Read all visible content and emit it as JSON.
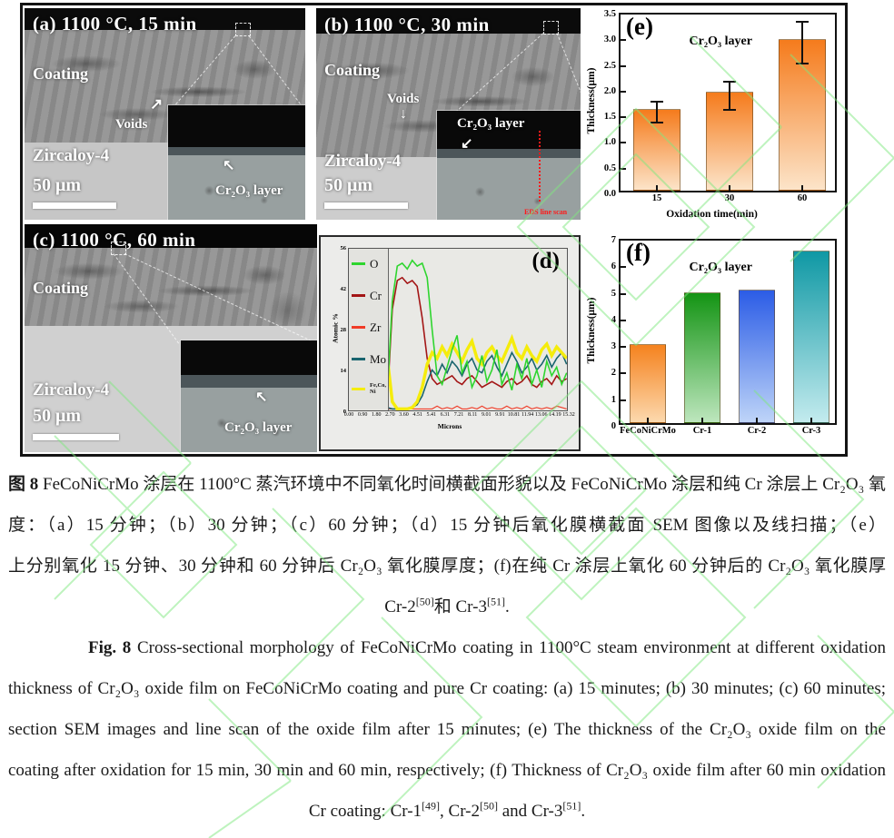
{
  "watermark": {
    "color": "#7fe87f"
  },
  "sem": {
    "a": {
      "title": "(a) 1100 °C, 15 min",
      "coating_label": "Coating",
      "voids_label": "Voids",
      "substrate_label": "Zircaloy-4",
      "scalebar_label": "50 μm",
      "inset_label": "Cr₂O₃ layer"
    },
    "b": {
      "title": "(b) 1100 °C, 30 min",
      "coating_label": "Coating",
      "voids_label": "Voids",
      "substrate_label": "Zircaloy-4",
      "scalebar_label": "50 μm",
      "inset_label": "Cr₂O₃ layer",
      "eds_label": "EDS line scan"
    },
    "c": {
      "title": "(c) 1100 °C, 60 min",
      "coating_label": "Coating",
      "substrate_label": "Zircaloy-4",
      "scalebar_label": "50 μm",
      "inset_label": "Cr₂O₃ layer"
    }
  },
  "chart_data": [
    {
      "type": "bar",
      "panel": "(e)",
      "title": "Cr₂O₃ layer",
      "xlabel": "Oxidation time(min)",
      "ylabel": "Thickness(μm)",
      "ylim": [
        0,
        3.5
      ],
      "yticks": [
        "0.0",
        "0.5",
        "1.0",
        "1.5",
        "2.0",
        "2.5",
        "3.0",
        "3.5"
      ],
      "categories": [
        "15",
        "30",
        "60"
      ],
      "values": [
        1.6,
        1.92,
        2.95
      ],
      "errors": [
        0.2,
        0.28,
        0.4
      ],
      "bar_colors": [
        [
          "#f57b1c",
          "#fce4c9"
        ],
        [
          "#f57b1c",
          "#fce4c9"
        ],
        [
          "#f57b1c",
          "#fce4c9"
        ]
      ],
      "grid": false,
      "legend": "none"
    },
    {
      "type": "line",
      "panel": "(d)",
      "xlabel": "Microns",
      "ylabel": "Atomic %",
      "ylim": [
        0,
        56
      ],
      "xlim": [
        0,
        15.32
      ],
      "yticks": [
        "0",
        "14",
        "28",
        "42",
        "56"
      ],
      "ytick_values": [
        0,
        14,
        28,
        42,
        56
      ],
      "xtick_labels": [
        "0.00",
        "0.90",
        "1.80",
        "2.70",
        "3.60",
        "4.51",
        "5.41",
        "6.31",
        "7.21",
        "8.11",
        "9.01",
        "9.91",
        "10.81",
        "11.94",
        "13.06",
        "14.19",
        "15.32"
      ],
      "legend_position": "left-column",
      "legend_boundary_x": 2.75,
      "x": [
        2.7,
        3.05,
        3.4,
        3.75,
        4.1,
        4.45,
        4.8,
        5.15,
        5.5,
        5.85,
        6.2,
        6.55,
        6.9,
        7.25,
        7.6,
        7.95,
        8.3,
        8.65,
        9.0,
        9.35,
        9.7,
        10.05,
        10.4,
        10.75,
        11.1,
        11.45,
        11.8,
        12.15,
        12.5,
        12.85,
        13.2,
        13.55,
        13.9,
        14.25,
        14.6,
        14.95,
        15.3
      ],
      "series": [
        {
          "name": "O",
          "legend": "O",
          "color": "#2ed52e",
          "y": [
            6,
            38,
            50,
            51,
            49,
            52,
            50,
            51,
            46,
            28,
            12,
            9,
            15,
            21,
            26,
            13,
            17,
            8,
            12,
            19,
            10,
            14,
            21,
            9,
            13,
            7,
            16,
            11,
            18,
            9,
            14,
            8,
            17,
            12,
            15,
            9,
            13
          ]
        },
        {
          "name": "Cr",
          "legend": "Cr",
          "color": "#a31515",
          "y": [
            4,
            35,
            45,
            46,
            44,
            45,
            43,
            32,
            18,
            11,
            9,
            10,
            11,
            12,
            10,
            9,
            11,
            12,
            10,
            8,
            9,
            10,
            9,
            8,
            10,
            11,
            9,
            10,
            12,
            9,
            8,
            10,
            11,
            9,
            12,
            10,
            11
          ]
        },
        {
          "name": "Zr",
          "legend": "Zr",
          "color": "#f03c28",
          "y": [
            0.5,
            0.5,
            0.5,
            0.5,
            0.5,
            0.5,
            0.5,
            0.5,
            0.5,
            0.5,
            1.5,
            0.5,
            1,
            0.5,
            1.5,
            0.5,
            0.5,
            1,
            0.5,
            1.5,
            0.5,
            1,
            0.5,
            0.5,
            1.5,
            0.5,
            1,
            0.5,
            1.5,
            0.5,
            1,
            0.5,
            1,
            0.5,
            1.5,
            1,
            0.5
          ]
        },
        {
          "name": "Mo",
          "legend": "Mo",
          "color": "#19646e",
          "y": [
            1,
            0.5,
            0.5,
            0.5,
            0.5,
            1,
            2,
            5,
            10,
            14,
            12,
            16,
            13,
            17,
            15,
            12,
            16,
            18,
            14,
            13,
            17,
            19,
            15,
            12,
            16,
            20,
            17,
            13,
            15,
            18,
            14,
            16,
            19,
            15,
            18,
            20,
            16
          ]
        },
        {
          "name": "Fe,Co,Ni",
          "legend": "Fe,Co,\nNi",
          "color": "#f5ec0c",
          "y": [
            18,
            3,
            0.5,
            0.5,
            0.5,
            1,
            3,
            8,
            16,
            20,
            18,
            22,
            19,
            23,
            20,
            17,
            21,
            24,
            18,
            16,
            20,
            22,
            19,
            17,
            21,
            25,
            20,
            18,
            22,
            19,
            17,
            21,
            23,
            19,
            22,
            20,
            18
          ]
        }
      ],
      "grid": false
    },
    {
      "type": "bar",
      "panel": "(f)",
      "title": "Cr₂O₃ layer",
      "xlabel": "",
      "ylabel": "Thickness(μm)",
      "ylim": [
        0,
        7
      ],
      "yticks": [
        "0",
        "1",
        "2",
        "3",
        "4",
        "5",
        "6",
        "7"
      ],
      "categories": [
        "FeCoNiCrMo",
        "Cr-1",
        "Cr-2",
        "Cr-3"
      ],
      "values": [
        2.97,
        4.93,
        5.03,
        6.5
      ],
      "errors": null,
      "bar_colors": [
        [
          "#f5821e",
          "#fcd9ae"
        ],
        [
          "#149414",
          "#bde6bd"
        ],
        [
          "#2b5ce6",
          "#bed4f8"
        ],
        [
          "#0f98a4",
          "#c3ebee"
        ]
      ],
      "grid": false,
      "legend": "none"
    }
  ],
  "captions": {
    "lines": [
      {
        "align": "justify",
        "lang": "zh",
        "segments": [
          {
            "t": "图 8",
            "b": true
          },
          {
            "t": " FeCoNiCrMo 涂层在 1100°C 蒸汽环境中不同氧化时间横截面形貌以及 FeCoNiCrMo 涂层和纯 Cr 涂层上 Cr₂O₃ 氧化膜厚"
          }
        ]
      },
      {
        "align": "justify",
        "lang": "zh",
        "segments": [
          {
            "t": "度：（a）15 分钟；（b）30 分钟；（c）60 分钟；（d）15 分钟后氧化膜横截面 SEM 图像以及线扫描；（e）FeCoNiCrMo 涂层"
          }
        ]
      },
      {
        "align": "justify",
        "lang": "zh",
        "segments": [
          {
            "t": "上分别氧化 15 分钟、30 分钟和 60 分钟后 Cr₂O₃ 氧化膜厚度；(f)在纯 Cr 涂层上氧化 60 分钟后的 Cr₂O₃ 氧化膜厚度：Cr-1"
          },
          {
            "t": "[49]",
            "s": true
          },
          {
            "t": "、"
          }
        ]
      },
      {
        "align": "center",
        "lang": "zh",
        "segments": [
          {
            "t": "Cr-2"
          },
          {
            "t": "[50]",
            "s": true
          },
          {
            "t": "和 Cr-3"
          },
          {
            "t": "[51]",
            "s": true
          },
          {
            "t": "."
          }
        ]
      },
      {
        "align": "justify",
        "lang": "en",
        "indent": true,
        "segments": [
          {
            "t": "Fig. 8",
            "b": true
          },
          {
            "t": " Cross-sectional morphology of FeCoNiCrMo coating in 1100°C steam environment at different oxidation times and the"
          }
        ]
      },
      {
        "align": "justify",
        "lang": "en",
        "segments": [
          {
            "t": "thickness of Cr₂O₃ oxide film on FeCoNiCrMo coating and pure Cr coating: (a) 15 minutes; (b) 30 minutes; (c) 60 minutes; (d) Cross"
          }
        ]
      },
      {
        "align": "justify",
        "lang": "en",
        "segments": [
          {
            "t": "section SEM images and line scan of the oxide film after 15 minutes; (e) The thickness of the Cr₂O₃ oxide film on the FeCoNiCrMo"
          }
        ]
      },
      {
        "align": "justify",
        "lang": "en",
        "segments": [
          {
            "t": "coating after oxidation for 15 min, 30 min and 60 min, respectively; (f) Thickness of Cr₂O₃ oxide film after 60 min oxidation on pure"
          }
        ]
      },
      {
        "align": "center",
        "lang": "en",
        "segments": [
          {
            "t": "Cr coating: Cr-1"
          },
          {
            "t": "[49]",
            "s": true
          },
          {
            "t": ", Cr-2"
          },
          {
            "t": "[50]",
            "s": true
          },
          {
            "t": " and Cr-3"
          },
          {
            "t": "[51]",
            "s": true
          },
          {
            "t": "."
          }
        ]
      }
    ]
  }
}
